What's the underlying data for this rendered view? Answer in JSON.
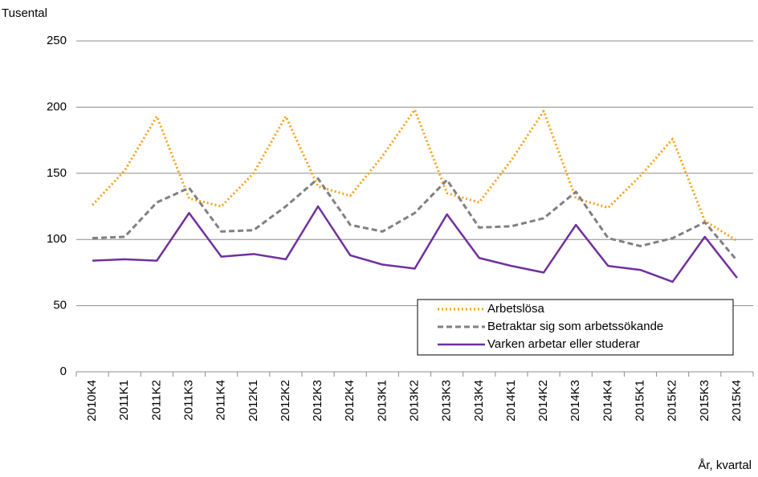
{
  "chart_data": {
    "type": "line",
    "y_label": "Tusental",
    "x_label": "År, kvartal",
    "categories": [
      "2010K4",
      "2011K1",
      "2011K2",
      "2011K3",
      "2011K4",
      "2012K1",
      "2012K2",
      "2012K3",
      "2012K4",
      "2013K1",
      "2013K2",
      "2013K3",
      "2013K4",
      "2014K1",
      "2014K2",
      "2014K3",
      "2014K4",
      "2015K1",
      "2015K2",
      "2015K3",
      "2015K4"
    ],
    "series": [
      {
        "name": "Arbetslösa",
        "color": "#f5a31a",
        "style": "dotted",
        "values": [
          126,
          152,
          193,
          131,
          125,
          150,
          193,
          140,
          133,
          163,
          198,
          135,
          128,
          160,
          197,
          131,
          124,
          148,
          176,
          114,
          99
        ]
      },
      {
        "name": "Betraktar sig som arbetssökande",
        "color": "#808080",
        "style": "dashed",
        "values": [
          101,
          102,
          128,
          139,
          106,
          107,
          125,
          146,
          111,
          106,
          120,
          145,
          109,
          110,
          116,
          136,
          101,
          95,
          101,
          113,
          84
        ]
      },
      {
        "name": "Varken arbetar eller studerar",
        "color": "#7030a0",
        "style": "solid",
        "values": [
          84,
          85,
          84,
          120,
          87,
          89,
          85,
          125,
          88,
          81,
          78,
          119,
          86,
          80,
          75,
          111,
          80,
          77,
          68,
          102,
          71
        ]
      }
    ],
    "ylim": [
      0,
      250
    ],
    "yticks": [
      0,
      50,
      100,
      150,
      200,
      250
    ],
    "grid": true,
    "legend": "lower right"
  }
}
